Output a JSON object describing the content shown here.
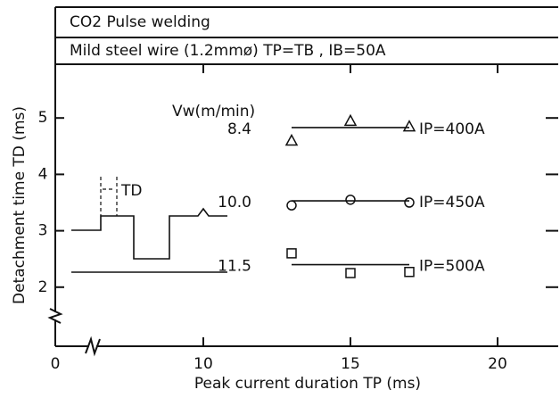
{
  "chart_data": {
    "type": "scatter",
    "header": [
      "CO2 Pulse welding",
      "Mild steel wire (1.2mmø) TP=TB , IB=50A"
    ],
    "xlabel": "Peak current duration  TP (ms)",
    "ylabel": "Detachment time  TD (ms)",
    "legend_title": "Vw(m/min)",
    "inset_label": "TD",
    "x_break": true,
    "y_break": true,
    "xlim": [
      7,
      22
    ],
    "xticks": [
      0,
      10,
      15,
      20
    ],
    "ylim": [
      1,
      6
    ],
    "yticks": [
      2,
      3,
      4,
      5
    ],
    "series": [
      {
        "name": "8.4",
        "label": "IP=400A",
        "marker": "triangle",
        "color": "#111111",
        "x": [
          13,
          15,
          17
        ],
        "values": [
          4.6,
          4.95,
          4.85
        ],
        "fit": 4.83
      },
      {
        "name": "10.0",
        "label": "IP=450A",
        "marker": "circle",
        "color": "#111111",
        "x": [
          13,
          15,
          17
        ],
        "values": [
          3.45,
          3.55,
          3.5
        ],
        "fit": 3.53
      },
      {
        "name": "11.5",
        "label": "IP=500A",
        "marker": "square",
        "color": "#111111",
        "x": [
          13,
          15,
          17
        ],
        "values": [
          2.6,
          2.25,
          2.27
        ],
        "fit": 2.4
      }
    ]
  }
}
